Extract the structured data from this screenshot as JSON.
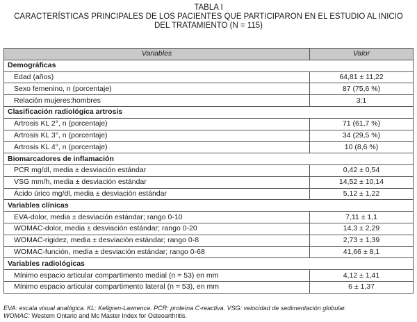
{
  "title": {
    "label": "TABLA I",
    "line1": "CARACTERÍSTICAS PRINCIPALES DE LOS PACIENTES QUE PARTICIPARON EN EL ESTUDIO AL INICIO",
    "line2": "DEL TRATAMIENTO (N = 115)"
  },
  "table": {
    "headers": [
      "Variables",
      "Valor"
    ],
    "sections": [
      {
        "title": "Demográficas",
        "rows": [
          [
            "Edad (años)",
            "64,81 ± 11,22"
          ],
          [
            "Sexo femenino, n (porcentaje)",
            "87 (75,6 %)"
          ],
          [
            "Relación mujeres:hombres",
            "3:1"
          ]
        ]
      },
      {
        "title": "Clasificación radiológica artrosis",
        "rows": [
          [
            "Artrosis KL 2°, n (porcentaje)",
            "71 (61,7 %)"
          ],
          [
            "Artrosis KL 3°, n (porcentaje)",
            "34 (29,5 %)"
          ],
          [
            "Artrosis KL 4°, n (porcentaje)",
            "10 (8,6 %)"
          ]
        ]
      },
      {
        "title": "Biomarcadores de inflamación",
        "rows": [
          [
            "PCR mg/dl, media ± desviación estándar",
            "0,42 ± 0,54"
          ],
          [
            "VSG mm/h, media ± desviación estándar",
            "14,52 ± 10,14"
          ],
          [
            "Ácido úrico mg/dl, media ± desviación estándar",
            "5,12 ± 1,22"
          ]
        ]
      },
      {
        "title": "Variables clínicas",
        "rows": [
          [
            "EVA-dolor, media ± desviación estándar; rango 0-10",
            "7,11 ± 1,1"
          ],
          [
            "WOMAC-dolor, media ± desviación estándar; rango 0-20",
            "14,3 ± 2,29"
          ],
          [
            "WOMAC-rigidez, media ± desviación estándar; rango 0-8",
            "2,73 ± 1,39"
          ],
          [
            "WOMAC-función, media ± desviación estándar; rango 0-68",
            "41,66 ± 8,1"
          ]
        ]
      },
      {
        "title": "Variables radiológicas",
        "rows": [
          [
            "Mínimo espacio articular compartimento medial (n = 53) en mm",
            "4,12 ±  1,41"
          ],
          [
            "Mínimo espacio articular compartimento lateral (n = 53), en mm",
            "6 ± 1,37"
          ]
        ]
      }
    ]
  },
  "footnote": {
    "line1": "EVA: escala visual analógica. KL: Kellgren-Lawrence. PCR: proteína C-reactiva. VSG: velocidad de sedimentación globular.",
    "line2_abbr": "WOMAC:",
    "line2_rest": " Western Ontario and Mc Master Index for Osteoarthritis."
  }
}
